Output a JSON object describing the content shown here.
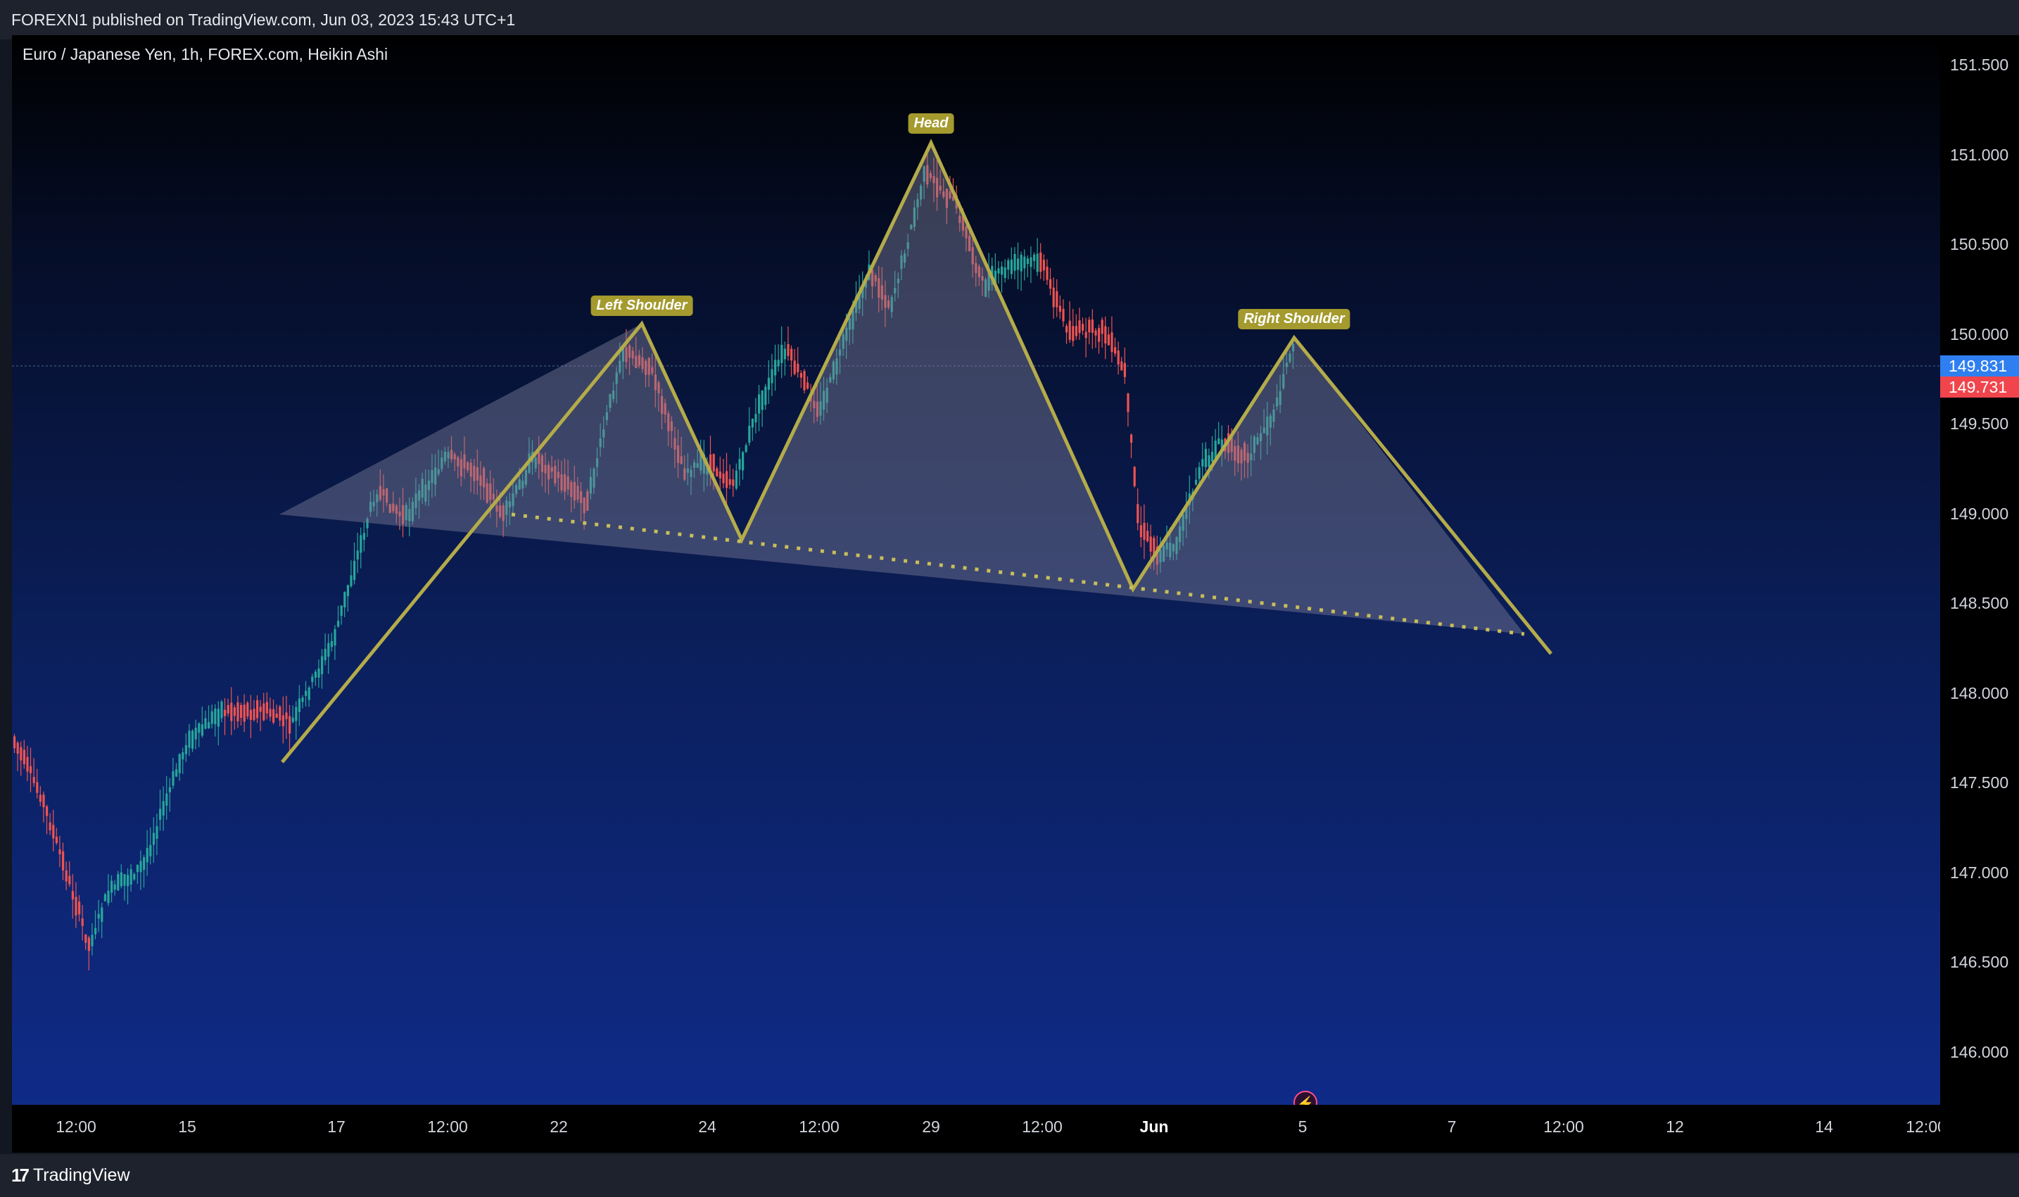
{
  "header": {
    "publisher_line": "FOREXN1 published on TradingView.com, Jun 03, 2023 15:43 UTC+1"
  },
  "chart": {
    "legend": "Euro / Japanese Yen, 1h, FOREX.com, Heikin Ashi",
    "price_ticks": [
      "151.500",
      "151.000",
      "150.500",
      "150.000",
      "149.500",
      "149.000",
      "148.500",
      "148.000",
      "147.500",
      "147.000",
      "146.500",
      "146.000"
    ],
    "price_tags": [
      {
        "label": "149.831",
        "color": "#2f7ff0"
      },
      {
        "label": "149.731",
        "color": "#f0454c"
      }
    ],
    "time_ticks": [
      {
        "label": "12:00",
        "bold": false
      },
      {
        "label": "15",
        "bold": false
      },
      {
        "label": "17",
        "bold": false
      },
      {
        "label": "12:00",
        "bold": false
      },
      {
        "label": "22",
        "bold": false
      },
      {
        "label": "24",
        "bold": false
      },
      {
        "label": "12:00",
        "bold": false
      },
      {
        "label": "29",
        "bold": false
      },
      {
        "label": "12:00",
        "bold": false
      },
      {
        "label": "Jun",
        "bold": true
      },
      {
        "label": "5",
        "bold": false
      },
      {
        "label": "7",
        "bold": false
      },
      {
        "label": "12:00",
        "bold": false
      },
      {
        "label": "12",
        "bold": false
      },
      {
        "label": "14",
        "bold": false
      },
      {
        "label": "12:00",
        "bold": false
      }
    ],
    "pattern_labels": {
      "left_shoulder": "Left Shoulder",
      "head": "Head",
      "right_shoulder": "Right Shoulder"
    },
    "colors": {
      "up_candle": "#26a69a",
      "down_candle": "#ef5350",
      "pattern_line": "#b4ab4a",
      "pattern_fill": "#7c7e98"
    }
  },
  "footer": {
    "brand": "TradingView",
    "logo_mark": "17"
  }
}
